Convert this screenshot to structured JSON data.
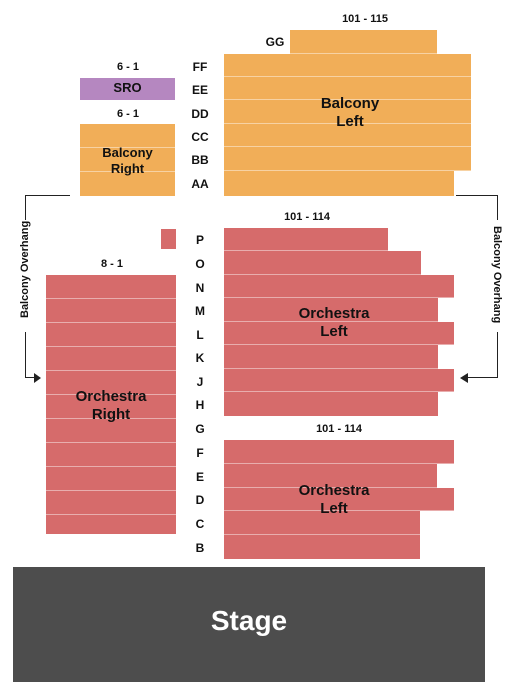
{
  "balcony": {
    "left_name_line1": "Balcony",
    "left_name_line2": "Left",
    "right_name_line1": "Balcony",
    "right_name_line2": "Right",
    "left_seat_range": "101 - 115",
    "right_seat_range_top": "6 - 1",
    "right_seat_range": "6 - 1",
    "sro_label": "SRO",
    "rows": [
      "GG",
      "FF",
      "EE",
      "DD",
      "CC",
      "BB",
      "AA"
    ]
  },
  "orchestra": {
    "left_upper_seat_range": "101 - 114",
    "left_lower_seat_range": "101 - 114",
    "right_seat_range": "8 - 1",
    "left_upper_name_line1": "Orchestra",
    "left_upper_name_line2": "Left",
    "left_lower_name_line1": "Orchestra",
    "left_lower_name_line2": "Left",
    "right_name_line1": "Orchestra",
    "right_name_line2": "Right",
    "rows": [
      "P",
      "O",
      "N",
      "M",
      "L",
      "K",
      "J",
      "H",
      "G",
      "F",
      "E",
      "D",
      "C",
      "B"
    ]
  },
  "overhang": {
    "left_label": "Balcony Overhang",
    "right_label": "Balcony Overhang"
  },
  "stage": {
    "label": "Stage"
  },
  "colors": {
    "balcony": "#f1ae58",
    "orchestra": "#d66b6b",
    "sro": "#b587c0",
    "stage": "#4d4d4d"
  }
}
